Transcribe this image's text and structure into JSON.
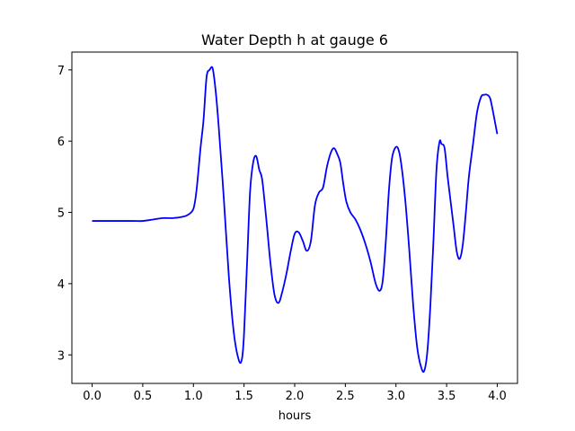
{
  "chart_data": {
    "type": "line",
    "title": "Water Depth h at gauge 6",
    "xlabel": "hours",
    "ylabel": "",
    "xlim": [
      -0.2,
      4.2
    ],
    "ylim": [
      2.6,
      7.25
    ],
    "xticks": [
      0.0,
      0.5,
      1.0,
      1.5,
      2.0,
      2.5,
      3.0,
      3.5,
      4.0
    ],
    "xtick_labels": [
      "0.0",
      "0.5",
      "1.0",
      "1.5",
      "2.0",
      "2.5",
      "3.0",
      "3.5",
      "4.0"
    ],
    "yticks": [
      3,
      4,
      5,
      6,
      7
    ],
    "ytick_labels": [
      "3",
      "4",
      "5",
      "6",
      "7"
    ],
    "grid": false,
    "series": [
      {
        "color": "#0000ff",
        "x": [
          0.0,
          0.2,
          0.4,
          0.5,
          0.6,
          0.7,
          0.8,
          0.9,
          0.95,
          1.0,
          1.03,
          1.07,
          1.1,
          1.13,
          1.16,
          1.19,
          1.22,
          1.25,
          1.3,
          1.35,
          1.4,
          1.45,
          1.48,
          1.5,
          1.53,
          1.56,
          1.59,
          1.62,
          1.65,
          1.68,
          1.72,
          1.76,
          1.8,
          1.84,
          1.88,
          1.92,
          1.96,
          2.0,
          2.04,
          2.08,
          2.12,
          2.16,
          2.2,
          2.24,
          2.28,
          2.32,
          2.36,
          2.39,
          2.42,
          2.45,
          2.48,
          2.51,
          2.55,
          2.6,
          2.65,
          2.7,
          2.75,
          2.8,
          2.84,
          2.87,
          2.9,
          2.93,
          2.96,
          2.99,
          3.02,
          3.05,
          3.09,
          3.13,
          3.17,
          3.21,
          3.25,
          3.28,
          3.31,
          3.34,
          3.37,
          3.4,
          3.43,
          3.45,
          3.48,
          3.51,
          3.54,
          3.57,
          3.6,
          3.63,
          3.66,
          3.69,
          3.72,
          3.76,
          3.8,
          3.84,
          3.87,
          3.9,
          3.93,
          3.96,
          3.98,
          4.0
        ],
        "y": [
          4.88,
          4.88,
          4.88,
          4.88,
          4.9,
          4.92,
          4.92,
          4.94,
          4.97,
          5.05,
          5.3,
          5.9,
          6.3,
          6.9,
          7.0,
          7.02,
          6.7,
          6.2,
          5.2,
          4.1,
          3.3,
          2.92,
          2.95,
          3.3,
          4.3,
          5.3,
          5.7,
          5.79,
          5.6,
          5.45,
          4.9,
          4.3,
          3.85,
          3.73,
          3.9,
          4.15,
          4.45,
          4.7,
          4.72,
          4.6,
          4.46,
          4.6,
          5.1,
          5.28,
          5.35,
          5.65,
          5.85,
          5.9,
          5.82,
          5.7,
          5.4,
          5.15,
          5.0,
          4.9,
          4.75,
          4.55,
          4.3,
          4.0,
          3.9,
          4.05,
          4.6,
          5.3,
          5.75,
          5.9,
          5.9,
          5.7,
          5.2,
          4.5,
          3.7,
          3.1,
          2.82,
          2.78,
          3.05,
          3.7,
          4.6,
          5.6,
          5.99,
          5.96,
          5.9,
          5.5,
          5.15,
          4.8,
          4.45,
          4.35,
          4.55,
          5.0,
          5.5,
          5.95,
          6.4,
          6.62,
          6.65,
          6.65,
          6.6,
          6.4,
          6.25,
          6.1
        ]
      }
    ]
  }
}
